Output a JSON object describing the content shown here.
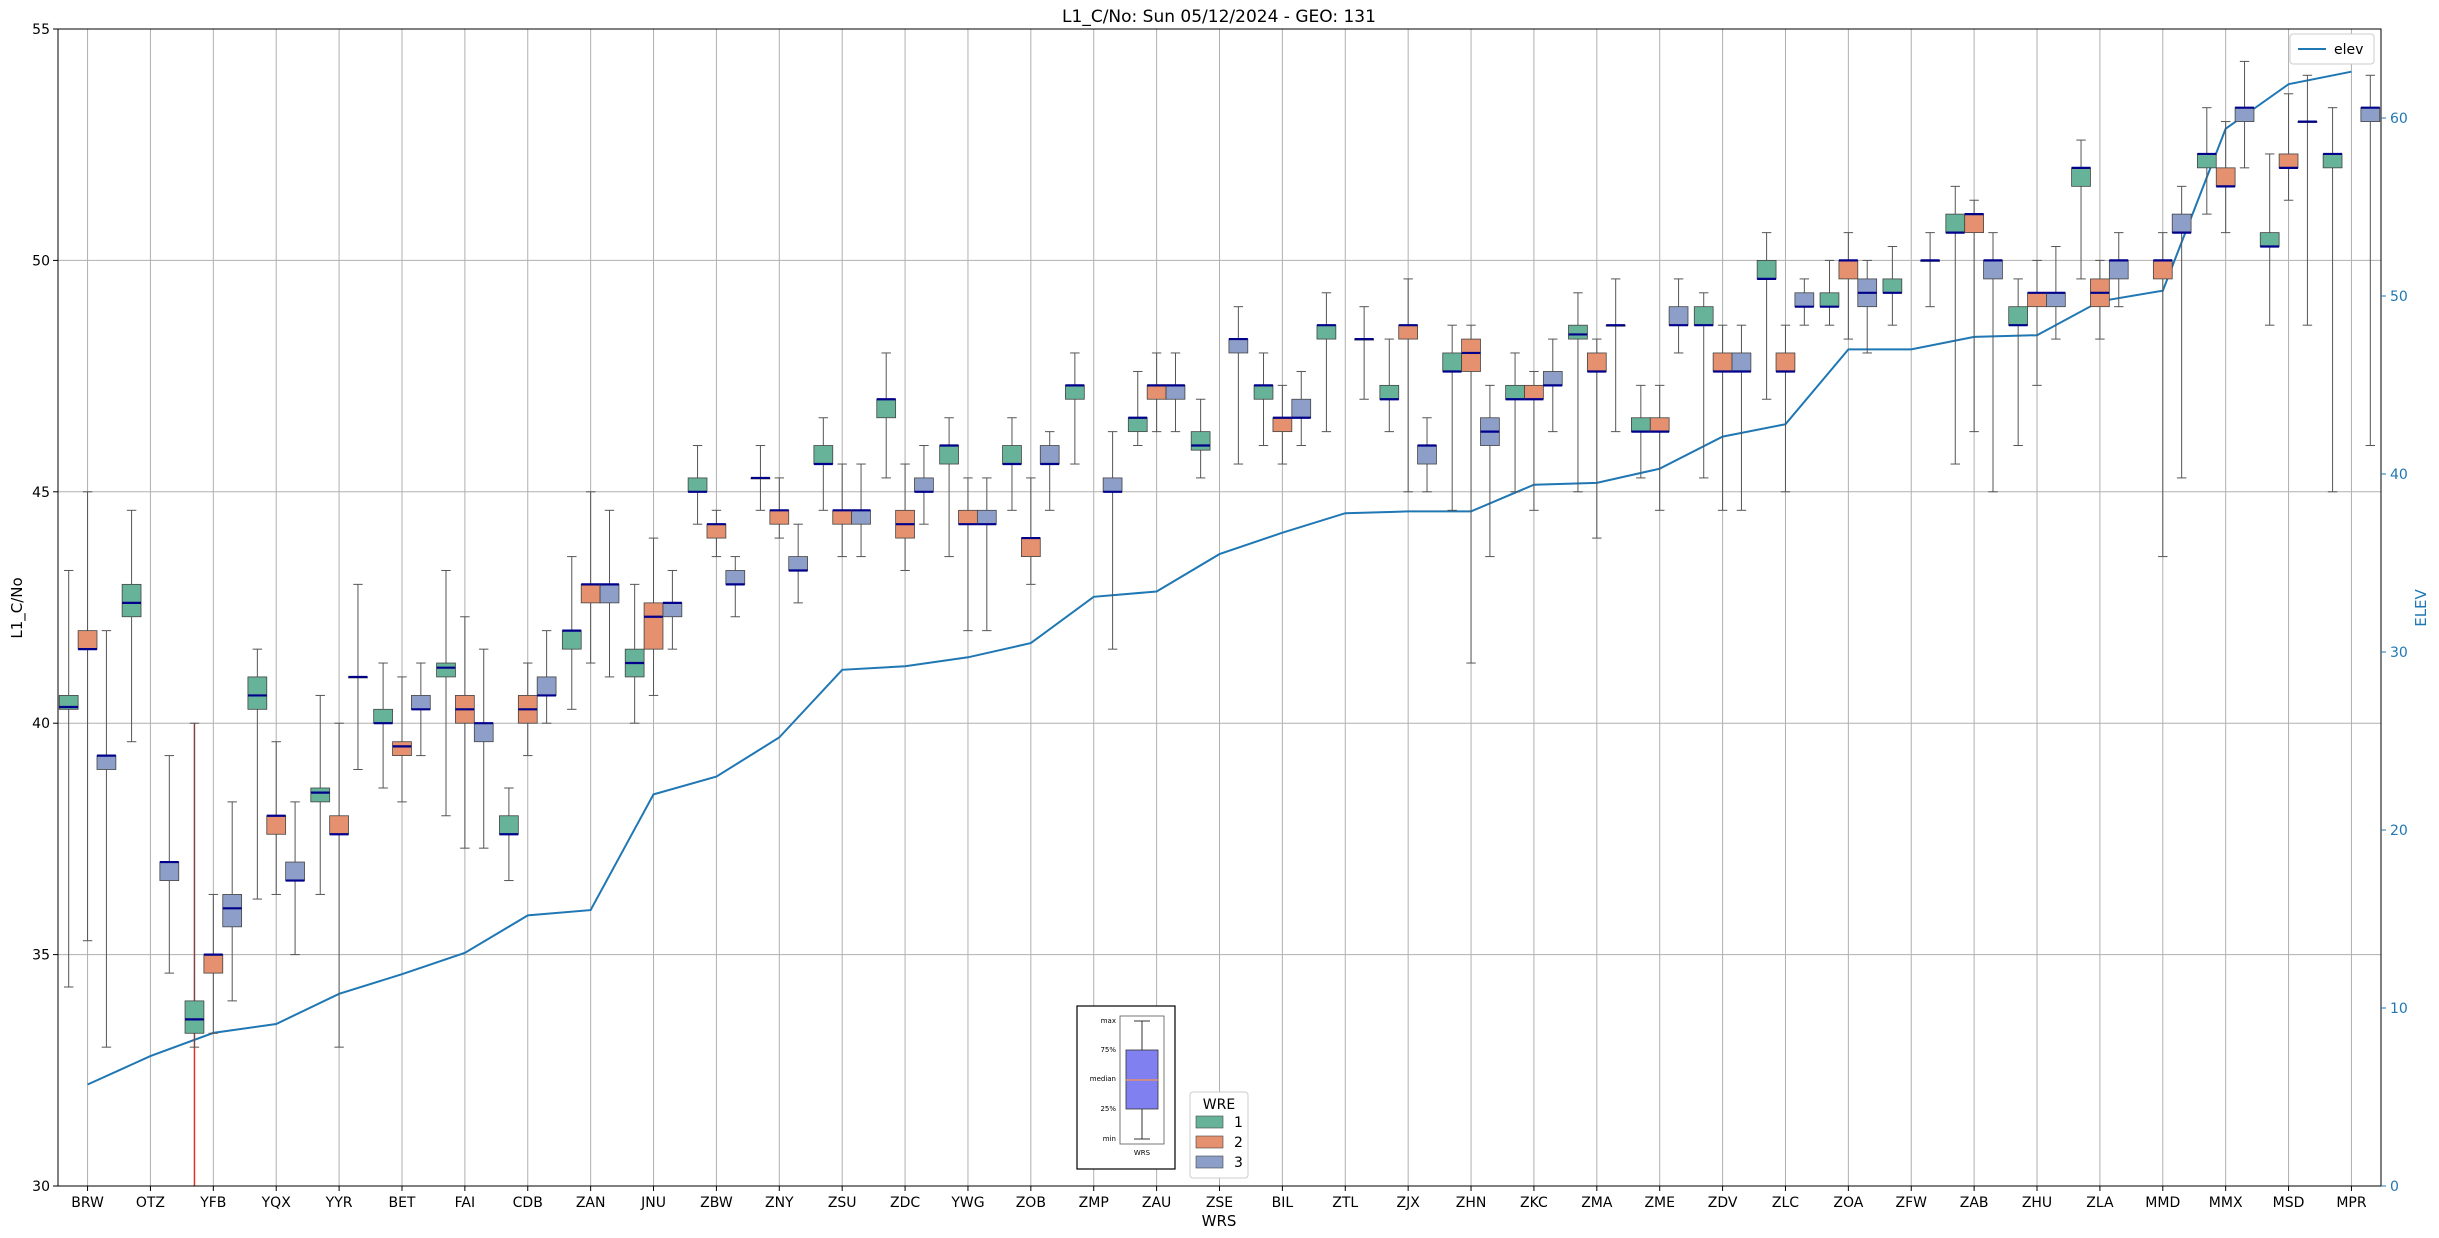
{
  "chart_data": {
    "type": "box",
    "title": "L1_C/No: Sun 05/12/2024 - GEO: 131",
    "xlabel": "WRS",
    "ylabel": "L1_C/No",
    "y2label": "ELEV",
    "ylim": [
      30,
      55
    ],
    "y2lim": [
      0,
      65
    ],
    "yticks": [
      30,
      35,
      40,
      45,
      50,
      55
    ],
    "y2ticks": [
      0,
      10,
      20,
      30,
      40,
      50,
      60
    ],
    "grid": true,
    "colors": {
      "wre1": "#66b399",
      "wre2": "#e5906e",
      "wre3": "#8d9fc8",
      "elev": "#1f77b4",
      "median": "#00008b",
      "whisker": "#555555",
      "highlight": "#e03030"
    },
    "categories": [
      "BRW",
      "OTZ",
      "YFB",
      "YQX",
      "YYR",
      "BET",
      "FAI",
      "CDB",
      "ZAN",
      "JNU",
      "ZBW",
      "ZNY",
      "ZSU",
      "ZDC",
      "YWG",
      "ZOB",
      "ZMP",
      "ZAU",
      "ZSE",
      "BIL",
      "ZTL",
      "ZJX",
      "ZHN",
      "ZKC",
      "ZMA",
      "ZME",
      "ZDV",
      "ZLC",
      "ZOA",
      "ZFW",
      "ZAB",
      "ZHU",
      "ZLA",
      "MMD",
      "MMX",
      "MSD",
      "MPR"
    ],
    "highlight_line": {
      "x_index": 1.7,
      "y_from": 30,
      "y_to": 40
    },
    "elevation": {
      "name": "elev",
      "legend_position": "top-right",
      "values": [
        5.7,
        7.3,
        8.6,
        9.1,
        10.8,
        11.9,
        13.1,
        15.2,
        15.5,
        22.0,
        23.0,
        25.2,
        29.0,
        29.2,
        29.7,
        30.5,
        33.1,
        33.4,
        35.5,
        36.7,
        37.8,
        37.9,
        37.9,
        39.4,
        39.5,
        40.3,
        42.1,
        42.8,
        47.0,
        47.0,
        47.7,
        47.8,
        49.7,
        50.3,
        59.4,
        61.9,
        62.6
      ]
    },
    "wre_legend": {
      "title": "WRE",
      "labels": [
        "1",
        "2",
        "3"
      ],
      "position": "bottom-center"
    },
    "inset_legend": {
      "labels": [
        "max",
        "75%",
        "median",
        "25%",
        "min"
      ],
      "xlabel": "WRS"
    },
    "series": [
      {
        "name": "1",
        "boxes": [
          {
            "c": 0,
            "min": 34.3,
            "q1": 40.3,
            "med": 40.35,
            "q3": 40.6,
            "max": 43.3
          },
          {
            "c": 1,
            "min": 39.6,
            "q1": 42.3,
            "med": 42.6,
            "q3": 43.0,
            "max": 44.6
          },
          {
            "c": 2,
            "min": 33.0,
            "q1": 33.3,
            "med": 33.6,
            "q3": 34.0,
            "max": 40.0
          },
          {
            "c": 3,
            "min": 36.2,
            "q1": 40.3,
            "med": 40.6,
            "q3": 41.0,
            "max": 41.6
          },
          {
            "c": 4,
            "min": 36.3,
            "q1": 38.3,
            "med": 38.5,
            "q3": 38.6,
            "max": 40.6
          },
          {
            "c": 5,
            "min": 38.6,
            "q1": 40.0,
            "med": 40.0,
            "q3": 40.3,
            "max": 41.3
          },
          {
            "c": 6,
            "min": 38.0,
            "q1": 41.0,
            "med": 41.2,
            "q3": 41.3,
            "max": 43.3
          },
          {
            "c": 7,
            "min": 36.6,
            "q1": 37.6,
            "med": 37.6,
            "q3": 38.0,
            "max": 38.6
          },
          {
            "c": 8,
            "min": 40.3,
            "q1": 41.6,
            "med": 42.0,
            "q3": 42.0,
            "max": 43.6
          },
          {
            "c": 9,
            "min": 40.0,
            "q1": 41.0,
            "med": 41.3,
            "q3": 41.6,
            "max": 43.0
          },
          {
            "c": 10,
            "min": 44.3,
            "q1": 45.0,
            "med": 45.0,
            "q3": 45.3,
            "max": 46.0
          },
          {
            "c": 11,
            "min": 44.6,
            "q1": 45.3,
            "med": 45.3,
            "q3": 45.3,
            "max": 46.0
          },
          {
            "c": 12,
            "min": 44.6,
            "q1": 45.6,
            "med": 45.6,
            "q3": 46.0,
            "max": 46.6
          },
          {
            "c": 13,
            "min": 45.3,
            "q1": 46.6,
            "med": 47.0,
            "q3": 47.0,
            "max": 48.0
          },
          {
            "c": 14,
            "min": 43.6,
            "q1": 45.6,
            "med": 46.0,
            "q3": 46.0,
            "max": 46.6
          },
          {
            "c": 15,
            "min": 44.6,
            "q1": 45.6,
            "med": 45.6,
            "q3": 46.0,
            "max": 46.6
          },
          {
            "c": 16,
            "min": 45.6,
            "q1": 47.0,
            "med": 47.3,
            "q3": 47.3,
            "max": 48.0
          },
          {
            "c": 17,
            "min": 46.0,
            "q1": 46.3,
            "med": 46.6,
            "q3": 46.6,
            "max": 47.6
          },
          {
            "c": 18,
            "min": 45.3,
            "q1": 45.9,
            "med": 46.0,
            "q3": 46.3,
            "max": 47.0
          },
          {
            "c": 19,
            "min": 46.0,
            "q1": 47.0,
            "med": 47.3,
            "q3": 47.3,
            "max": 48.0
          },
          {
            "c": 20,
            "min": 46.3,
            "q1": 48.3,
            "med": 48.6,
            "q3": 48.6,
            "max": 49.3
          },
          {
            "c": 21,
            "min": 46.3,
            "q1": 47.0,
            "med": 47.0,
            "q3": 47.3,
            "max": 48.3
          },
          {
            "c": 22,
            "min": 44.6,
            "q1": 47.6,
            "med": 47.6,
            "q3": 48.0,
            "max": 48.6
          },
          {
            "c": 23,
            "min": 45.0,
            "q1": 47.0,
            "med": 47.0,
            "q3": 47.3,
            "max": 48.0
          },
          {
            "c": 24,
            "min": 45.0,
            "q1": 48.3,
            "med": 48.4,
            "q3": 48.6,
            "max": 49.3
          },
          {
            "c": 25,
            "min": 45.3,
            "q1": 46.3,
            "med": 46.3,
            "q3": 46.6,
            "max": 47.3
          },
          {
            "c": 26,
            "min": 45.3,
            "q1": 48.6,
            "med": 48.6,
            "q3": 49.0,
            "max": 49.3
          },
          {
            "c": 27,
            "min": 47.0,
            "q1": 49.6,
            "med": 49.6,
            "q3": 50.0,
            "max": 50.6
          },
          {
            "c": 28,
            "min": 48.6,
            "q1": 49.0,
            "med": 49.0,
            "q3": 49.3,
            "max": 50.0
          },
          {
            "c": 29,
            "min": 48.6,
            "q1": 49.3,
            "med": 49.3,
            "q3": 49.6,
            "max": 50.3
          },
          {
            "c": 30,
            "min": 45.6,
            "q1": 50.6,
            "med": 50.6,
            "q3": 51.0,
            "max": 51.6
          },
          {
            "c": 31,
            "min": 46.0,
            "q1": 48.6,
            "med": 48.6,
            "q3": 49.0,
            "max": 49.6
          },
          {
            "c": 32,
            "min": 49.6,
            "q1": 51.6,
            "med": 52.0,
            "q3": 52.0,
            "max": 52.6
          },
          {
            "c": 34,
            "min": 51.0,
            "q1": 52.0,
            "med": 52.3,
            "q3": 52.3,
            "max": 53.3
          },
          {
            "c": 35,
            "min": 48.6,
            "q1": 50.3,
            "med": 50.3,
            "q3": 50.6,
            "max": 52.3
          },
          {
            "c": 36,
            "min": 45.0,
            "q1": 52.0,
            "med": 52.3,
            "q3": 52.3,
            "max": 53.3
          }
        ]
      },
      {
        "name": "2",
        "boxes": [
          {
            "c": 0,
            "min": 35.3,
            "q1": 41.6,
            "med": 41.6,
            "q3": 42.0,
            "max": 45.0
          },
          {
            "c": 2,
            "min": 33.3,
            "q1": 34.6,
            "med": 35.0,
            "q3": 35.0,
            "max": 36.3
          },
          {
            "c": 3,
            "min": 36.3,
            "q1": 37.6,
            "med": 38.0,
            "q3": 38.0,
            "max": 39.6
          },
          {
            "c": 4,
            "min": 33.0,
            "q1": 37.6,
            "med": 37.6,
            "q3": 38.0,
            "max": 40.0
          },
          {
            "c": 5,
            "min": 38.3,
            "q1": 39.3,
            "med": 39.5,
            "q3": 39.6,
            "max": 41.0
          },
          {
            "c": 6,
            "min": 37.3,
            "q1": 40.0,
            "med": 40.3,
            "q3": 40.6,
            "max": 42.3
          },
          {
            "c": 7,
            "min": 39.3,
            "q1": 40.0,
            "med": 40.3,
            "q3": 40.6,
            "max": 41.3
          },
          {
            "c": 8,
            "min": 41.3,
            "q1": 42.6,
            "med": 43.0,
            "q3": 43.0,
            "max": 45.0
          },
          {
            "c": 9,
            "min": 40.6,
            "q1": 41.6,
            "med": 42.3,
            "q3": 42.6,
            "max": 44.0
          },
          {
            "c": 10,
            "min": 43.6,
            "q1": 44.0,
            "med": 44.3,
            "q3": 44.3,
            "max": 44.6
          },
          {
            "c": 11,
            "min": 44.0,
            "q1": 44.3,
            "med": 44.6,
            "q3": 44.6,
            "max": 45.3
          },
          {
            "c": 12,
            "min": 43.6,
            "q1": 44.3,
            "med": 44.6,
            "q3": 44.6,
            "max": 45.6
          },
          {
            "c": 13,
            "min": 43.3,
            "q1": 44.0,
            "med": 44.3,
            "q3": 44.6,
            "max": 45.6
          },
          {
            "c": 14,
            "min": 42.0,
            "q1": 44.3,
            "med": 44.3,
            "q3": 44.6,
            "max": 45.3
          },
          {
            "c": 15,
            "min": 43.0,
            "q1": 43.6,
            "med": 44.0,
            "q3": 44.0,
            "max": 45.3
          },
          {
            "c": 17,
            "min": 46.3,
            "q1": 47.0,
            "med": 47.3,
            "q3": 47.3,
            "max": 48.0
          },
          {
            "c": 19,
            "min": 45.6,
            "q1": 46.3,
            "med": 46.6,
            "q3": 46.6,
            "max": 47.3
          },
          {
            "c": 21,
            "min": 45.0,
            "q1": 48.3,
            "med": 48.6,
            "q3": 48.6,
            "max": 49.6
          },
          {
            "c": 22,
            "min": 41.3,
            "q1": 47.6,
            "med": 48.0,
            "q3": 48.3,
            "max": 48.6
          },
          {
            "c": 23,
            "min": 44.6,
            "q1": 47.0,
            "med": 47.0,
            "q3": 47.3,
            "max": 47.6
          },
          {
            "c": 24,
            "min": 44.0,
            "q1": 47.6,
            "med": 47.6,
            "q3": 48.0,
            "max": 48.3
          },
          {
            "c": 25,
            "min": 44.6,
            "q1": 46.3,
            "med": 46.3,
            "q3": 46.6,
            "max": 47.3
          },
          {
            "c": 26,
            "min": 44.6,
            "q1": 47.6,
            "med": 47.6,
            "q3": 48.0,
            "max": 48.6
          },
          {
            "c": 27,
            "min": 45.0,
            "q1": 47.6,
            "med": 47.6,
            "q3": 48.0,
            "max": 48.6
          },
          {
            "c": 28,
            "min": 48.3,
            "q1": 49.6,
            "med": 50.0,
            "q3": 50.0,
            "max": 50.6
          },
          {
            "c": 30,
            "min": 46.3,
            "q1": 50.6,
            "med": 51.0,
            "q3": 51.0,
            "max": 51.3
          },
          {
            "c": 31,
            "min": 47.3,
            "q1": 49.0,
            "med": 49.3,
            "q3": 49.3,
            "max": 50.0
          },
          {
            "c": 32,
            "min": 48.3,
            "q1": 49.0,
            "med": 49.3,
            "q3": 49.6,
            "max": 50.0
          },
          {
            "c": 33,
            "min": 43.6,
            "q1": 49.6,
            "med": 50.0,
            "q3": 50.0,
            "max": 50.6
          },
          {
            "c": 34,
            "min": 50.6,
            "q1": 51.6,
            "med": 51.6,
            "q3": 52.0,
            "max": 53.0
          },
          {
            "c": 35,
            "min": 51.3,
            "q1": 52.0,
            "med": 52.0,
            "q3": 52.3,
            "max": 53.6
          }
        ]
      },
      {
        "name": "3",
        "boxes": [
          {
            "c": 0,
            "min": 33.0,
            "q1": 39.0,
            "med": 39.3,
            "q3": 39.3,
            "max": 42.0
          },
          {
            "c": 1,
            "min": 34.6,
            "q1": 36.6,
            "med": 37.0,
            "q3": 37.0,
            "max": 39.3
          },
          {
            "c": 2,
            "min": 34.0,
            "q1": 35.6,
            "med": 36.0,
            "q3": 36.3,
            "max": 38.3
          },
          {
            "c": 3,
            "min": 35.0,
            "q1": 36.6,
            "med": 36.6,
            "q3": 37.0,
            "max": 38.3
          },
          {
            "c": 4,
            "min": 39.0,
            "q1": 41.0,
            "med": 41.0,
            "q3": 41.0,
            "max": 43.0
          },
          {
            "c": 5,
            "min": 39.3,
            "q1": 40.3,
            "med": 40.3,
            "q3": 40.6,
            "max": 41.3
          },
          {
            "c": 6,
            "min": 37.3,
            "q1": 39.6,
            "med": 40.0,
            "q3": 40.0,
            "max": 41.6
          },
          {
            "c": 7,
            "min": 40.0,
            "q1": 40.6,
            "med": 40.6,
            "q3": 41.0,
            "max": 42.0
          },
          {
            "c": 8,
            "min": 41.0,
            "q1": 42.6,
            "med": 43.0,
            "q3": 43.0,
            "max": 44.6
          },
          {
            "c": 9,
            "min": 41.6,
            "q1": 42.3,
            "med": 42.6,
            "q3": 42.6,
            "max": 43.3
          },
          {
            "c": 10,
            "min": 42.3,
            "q1": 43.0,
            "med": 43.0,
            "q3": 43.3,
            "max": 43.6
          },
          {
            "c": 11,
            "min": 42.6,
            "q1": 43.3,
            "med": 43.3,
            "q3": 43.6,
            "max": 44.3
          },
          {
            "c": 12,
            "min": 43.6,
            "q1": 44.3,
            "med": 44.6,
            "q3": 44.6,
            "max": 45.6
          },
          {
            "c": 13,
            "min": 44.3,
            "q1": 45.0,
            "med": 45.0,
            "q3": 45.3,
            "max": 46.0
          },
          {
            "c": 14,
            "min": 42.0,
            "q1": 44.3,
            "med": 44.3,
            "q3": 44.6,
            "max": 45.3
          },
          {
            "c": 15,
            "min": 44.6,
            "q1": 45.6,
            "med": 45.6,
            "q3": 46.0,
            "max": 46.3
          },
          {
            "c": 16,
            "min": 41.6,
            "q1": 45.0,
            "med": 45.0,
            "q3": 45.3,
            "max": 46.3
          },
          {
            "c": 17,
            "min": 46.3,
            "q1": 47.0,
            "med": 47.3,
            "q3": 47.3,
            "max": 48.0
          },
          {
            "c": 18,
            "min": 45.6,
            "q1": 48.0,
            "med": 48.3,
            "q3": 48.3,
            "max": 49.0
          },
          {
            "c": 19,
            "min": 46.0,
            "q1": 46.6,
            "med": 46.6,
            "q3": 47.0,
            "max": 47.6
          },
          {
            "c": 20,
            "min": 47.0,
            "q1": 48.3,
            "med": 48.3,
            "q3": 48.3,
            "max": 49.0
          },
          {
            "c": 21,
            "min": 45.0,
            "q1": 45.6,
            "med": 46.0,
            "q3": 46.0,
            "max": 46.6
          },
          {
            "c": 22,
            "min": 43.6,
            "q1": 46.0,
            "med": 46.3,
            "q3": 46.6,
            "max": 47.3
          },
          {
            "c": 23,
            "min": 46.3,
            "q1": 47.3,
            "med": 47.3,
            "q3": 47.6,
            "max": 48.3
          },
          {
            "c": 24,
            "min": 46.3,
            "q1": 48.6,
            "med": 48.6,
            "q3": 48.6,
            "max": 49.6
          },
          {
            "c": 25,
            "min": 48.0,
            "q1": 48.6,
            "med": 48.6,
            "q3": 49.0,
            "max": 49.6
          },
          {
            "c": 26,
            "min": 44.6,
            "q1": 47.6,
            "med": 47.6,
            "q3": 48.0,
            "max": 48.6
          },
          {
            "c": 27,
            "min": 48.6,
            "q1": 49.0,
            "med": 49.0,
            "q3": 49.3,
            "max": 49.6
          },
          {
            "c": 28,
            "min": 48.0,
            "q1": 49.0,
            "med": 49.3,
            "q3": 49.6,
            "max": 50.0
          },
          {
            "c": 29,
            "min": 49.0,
            "q1": 50.0,
            "med": 50.0,
            "q3": 50.0,
            "max": 50.6
          },
          {
            "c": 30,
            "min": 45.0,
            "q1": 49.6,
            "med": 50.0,
            "q3": 50.0,
            "max": 50.6
          },
          {
            "c": 31,
            "min": 48.3,
            "q1": 49.0,
            "med": 49.3,
            "q3": 49.3,
            "max": 50.3
          },
          {
            "c": 32,
            "min": 49.0,
            "q1": 49.6,
            "med": 50.0,
            "q3": 50.0,
            "max": 50.6
          },
          {
            "c": 33,
            "min": 45.3,
            "q1": 50.6,
            "med": 50.6,
            "q3": 51.0,
            "max": 51.6
          },
          {
            "c": 34,
            "min": 52.0,
            "q1": 53.0,
            "med": 53.3,
            "q3": 53.3,
            "max": 54.3
          },
          {
            "c": 35,
            "min": 48.6,
            "q1": 53.0,
            "med": 53.0,
            "q3": 53.0,
            "max": 54.0
          },
          {
            "c": 36,
            "min": 46.0,
            "q1": 53.0,
            "med": 53.3,
            "q3": 53.3,
            "max": 54.0
          }
        ]
      }
    ]
  }
}
